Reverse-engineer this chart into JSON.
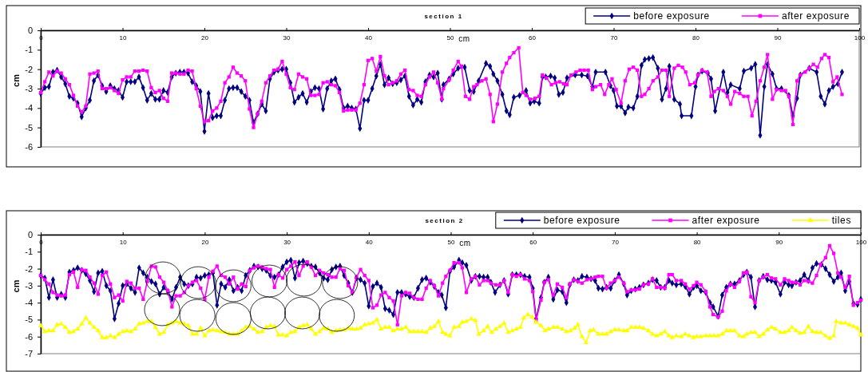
{
  "chart_data": [
    {
      "type": "line",
      "title": "section 1",
      "xlabel": "cm",
      "ylabel": "cm",
      "xlim": [
        0,
        100
      ],
      "xticks": [
        0,
        10,
        20,
        30,
        40,
        50,
        60,
        70,
        80,
        90,
        100
      ],
      "ylim": [
        -6,
        0
      ],
      "yticks": [
        -6,
        -5,
        -4,
        -3,
        -2,
        -1,
        0
      ],
      "grid": false,
      "legend": "top right",
      "series": [
        {
          "name": "before exposure",
          "color": "#000080",
          "marker": "diamond",
          "x": [
            0,
            0.5,
            1,
            1.5,
            2,
            2.5,
            3,
            3.5,
            4,
            4.5,
            5,
            5.5,
            6,
            6.5,
            7,
            7.5,
            8,
            8.5,
            9,
            9.5,
            10,
            10.5,
            11,
            11.5,
            12,
            12.5,
            13,
            13.5,
            14,
            14.5,
            15,
            15.5,
            16,
            16.5,
            17,
            17.5,
            18,
            18.5,
            19,
            19.5,
            20,
            20.5,
            21,
            21.5,
            22,
            22.5,
            23,
            23.5,
            24,
            24.5,
            25,
            25.5,
            26,
            26.5,
            27,
            27.5,
            28,
            28.5,
            29,
            29.5,
            30,
            30.5,
            31,
            31.5,
            32,
            32.5,
            33,
            33.5,
            34,
            34.5,
            35,
            35.5,
            36,
            36.5,
            37,
            37.5,
            38,
            38.5,
            39,
            39.5,
            40,
            40.5,
            41,
            41.5,
            42,
            42.5,
            43,
            43.5,
            44,
            44.5,
            45,
            45.5,
            46,
            46.5,
            47,
            47.5,
            48,
            48.5,
            49,
            49.2,
            49.9,
            50.4,
            51.0,
            51.8,
            52.4,
            52.9,
            53.5,
            54.4,
            54.9,
            55.3,
            55.8,
            56.4,
            56.9,
            57.3,
            57.8,
            58.5,
            59.3,
            59.8,
            60.3,
            60.9,
            61.3,
            61.7,
            62.3,
            62.8,
            63.3,
            63.8,
            64.3,
            65.3,
            66.1,
            66.8,
            67.4,
            67.8,
            69.0,
            69.6,
            70.0,
            70.4,
            70.9,
            71.4,
            71.8,
            72.4,
            72.9,
            73.4,
            73.8,
            74.3,
            74.8,
            75.4,
            75.9,
            76.4,
            76.8,
            77.4,
            78.1,
            78.3,
            79.5,
            80.0,
            80.3,
            80.8,
            81.5,
            81.9,
            82.4,
            83.4,
            83.9,
            84.3,
            85.4,
            85.9,
            86.8,
            87.3,
            87.9,
            88.4,
            88.8,
            89.4,
            89.9,
            90.5,
            91.4,
            91.9,
            92.4,
            92.8,
            93.9,
            94.8,
            95.3,
            95.8,
            96.3,
            96.8,
            97.4,
            97.9
          ],
          "values": [
            -3.25,
            -2.95,
            -2.9,
            -2.15,
            -2.05,
            -2.4,
            -2.75,
            -3.4,
            -3.5,
            -3.75,
            -4.45,
            -4.0,
            -3.6,
            -2.6,
            -2.3,
            -2.85,
            -3.15,
            -2.85,
            -3.0,
            -3.1,
            -3.45,
            -2.65,
            -2.65,
            -2.65,
            -2.4,
            -2.95,
            -3.6,
            -3.25,
            -3.55,
            -3.55,
            -3.1,
            -3.2,
            -2.4,
            -2.2,
            -2.15,
            -2.15,
            -2.2,
            -2.65,
            -2.85,
            -3.15,
            -5.2,
            -3.25,
            -4.5,
            -4.4,
            -4.4,
            -3.6,
            -3.0,
            -2.95,
            -2.95,
            -3.15,
            -3.4,
            -3.6,
            -4.75,
            -4.3,
            -3.8,
            -4.15,
            -2.5,
            -2.15,
            -2.05,
            -2.0,
            -2.0,
            -2.7,
            -3.7,
            -3.45,
            -3.25,
            -3.7,
            -3.15,
            -2.95,
            -3.0,
            -4.05,
            -3.0,
            -2.6,
            -2.5,
            -3.05,
            -4.0,
            -3.9,
            -4.0,
            -4.05,
            -5.05,
            -3.6,
            -3.6,
            -3.0,
            -2.35,
            -1.75,
            -2.8,
            -2.45,
            -2.75,
            -2.7,
            -2.55,
            -2.35,
            -3.4,
            -3.85,
            -3.55,
            -3.7,
            -2.65,
            -2.3,
            -2.4,
            -2.2,
            -3.55,
            -2.8,
            -2.5,
            -2.25,
            -1.95,
            -1.9,
            -3.1,
            -3.15,
            -2.6,
            -1.7,
            -1.85,
            -2.25,
            -2.6,
            -3.3,
            -4.15,
            -4.35,
            -3.45,
            -3.35,
            -3.1,
            -3.75,
            -3.65,
            -3.75,
            -2.4,
            -2.4,
            -2.35,
            -2.45,
            -3.3,
            -3.2,
            -2.45,
            -2.3,
            -2.3,
            -2.35,
            -2.9,
            -2.15,
            -2.15,
            -2.85,
            -3.1,
            -3.9,
            -3.9,
            -4.25,
            -3.95,
            -4.0,
            -3.4,
            -1.8,
            -1.5,
            -1.45,
            -1.4,
            -1.95,
            -3.55,
            -3.0,
            -1.85,
            -3.55,
            -3.8,
            -4.4,
            -4.4,
            -2.9,
            -2.3,
            -2.1,
            -2.2,
            -2.5,
            -4.15,
            -2.15,
            -3.2,
            -2.8,
            -3.0,
            -2.1,
            -1.95,
            -1.75,
            -5.4,
            -2.9,
            -1.75,
            -2.25,
            -3.0,
            -3.0,
            -3.35,
            -4.4,
            -3.5,
            -2.3,
            -1.95,
            -2.15,
            -3.4,
            -3.8,
            -3.1,
            -2.9,
            -2.75,
            -2.15
          ]
        },
        {
          "name": "after exposure",
          "color": "#ff00ff",
          "marker": "square",
          "x": [
            0,
            0.5,
            1,
            1.5,
            2,
            2.5,
            3,
            3.5,
            4,
            4.5,
            5,
            5.5,
            6,
            6.5,
            7,
            7.5,
            8,
            8.5,
            9,
            9.5,
            10,
            10.5,
            11,
            11.5,
            12,
            12.5,
            13,
            13.5,
            14,
            14.5,
            15,
            15.5,
            16,
            16.5,
            17,
            17.5,
            18,
            18.5,
            19,
            19.5,
            20,
            20.5,
            21,
            21.5,
            22,
            22.5,
            23,
            23.5,
            24,
            24.5,
            25,
            25.5,
            26,
            26.5,
            27,
            27.5,
            28,
            28.5,
            29,
            29.5,
            30,
            30.5,
            31,
            31.5,
            32,
            32.5,
            33,
            33.5,
            34,
            34.5,
            35,
            35.5,
            36,
            36.5,
            37,
            37.5,
            38,
            38.5,
            39,
            39.5,
            40,
            40.5,
            41,
            41.5,
            42,
            42.5,
            43,
            43.5,
            44,
            44.5,
            45,
            45.5,
            46,
            46.5,
            47,
            47.5,
            48,
            48.5,
            49,
            49.2,
            49.9,
            50.4,
            51.0,
            51.4,
            51.9,
            52.4,
            52.9,
            53.3,
            53.9,
            54.4,
            54.9,
            55.3,
            55.8,
            56.4,
            56.9,
            57.3,
            57.8,
            58.4,
            58.9,
            59.3,
            59.8,
            60.4,
            60.9,
            61.3,
            61.8,
            62.4,
            62.9,
            63.4,
            63.9,
            64.3,
            64.8,
            65.4,
            65.9,
            66.4,
            66.9,
            67.4,
            67.8,
            68.4,
            68.9,
            69.4,
            69.8,
            70.3,
            70.9,
            71.4,
            71.9,
            72.4,
            72.9,
            73.4,
            73.8,
            74.3,
            74.8,
            75.4,
            75.9,
            76.4,
            76.8,
            77.4,
            77.9,
            78.4,
            78.8,
            79.3,
            79.9,
            80.3,
            80.8,
            81.4,
            81.9,
            82.3,
            82.8,
            83.4,
            83.9,
            84.3,
            84.8,
            85.4,
            85.9,
            86.4,
            86.9,
            87.4,
            87.9,
            88.4,
            88.8,
            89.4,
            89.9,
            90.5,
            91.0,
            91.4,
            91.9,
            92.4,
            92.8,
            93.4,
            93.9,
            94.4,
            94.9,
            95.4,
            95.8,
            96.3,
            96.8,
            97.3,
            97.9
          ],
          "values": [
            -3.2,
            -2.65,
            -2.15,
            -2.35,
            -2.1,
            -2.2,
            -2.5,
            -2.8,
            -3.35,
            -3.9,
            -4.2,
            -3.9,
            -2.25,
            -2.2,
            -2.1,
            -3.0,
            -3.0,
            -2.95,
            -3.1,
            -3.25,
            -2.55,
            -2.4,
            -2.4,
            -2.1,
            -2.1,
            -2.05,
            -2.1,
            -2.95,
            -3.2,
            -3.1,
            -3.5,
            -3.65,
            -2.2,
            -2.2,
            -2.25,
            -2.25,
            -2.05,
            -2.1,
            -3.0,
            -3.9,
            -4.7,
            -4.65,
            -4.15,
            -4.0,
            -3.65,
            -2.7,
            -2.4,
            -1.9,
            -2.2,
            -2.35,
            -2.6,
            -4.05,
            -5.0,
            -4.3,
            -3.65,
            -2.7,
            -2.35,
            -2.05,
            -2.0,
            -1.6,
            -2.25,
            -2.95,
            -3.05,
            -2.25,
            -2.4,
            -2.5,
            -3.35,
            -3.35,
            -3.3,
            -2.7,
            -2.65,
            -2.8,
            -2.85,
            -3.2,
            -4.15,
            -4.1,
            -4.1,
            -4.1,
            -3.75,
            -2.8,
            -1.55,
            -1.45,
            -2.1,
            -1.35,
            -2.35,
            -2.8,
            -2.7,
            -2.6,
            -2.25,
            -2.05,
            -3.05,
            -3.1,
            -3.35,
            -3.4,
            -2.8,
            -2.4,
            -2.15,
            -2.7,
            -3.55,
            -3.0,
            -2.55,
            -2.05,
            -1.6,
            -1.85,
            -3.4,
            -3.55,
            -2.9,
            -2.8,
            -2.6,
            -2.5,
            -3.3,
            -4.7,
            -3.8,
            -2.15,
            -1.7,
            -1.4,
            -1.15,
            -0.9,
            -3.2,
            -3.35,
            -3.55,
            -3.5,
            -3.4,
            -2.3,
            -2.45,
            -2.8,
            -2.7,
            -2.65,
            -2.75,
            -2.8,
            -2.3,
            -2.15,
            -2.05,
            -2.05,
            -2.05,
            -3.05,
            -2.9,
            -2.8,
            -3.3,
            -2.8,
            -2.5,
            -3.05,
            -3.75,
            -2.6,
            -2.0,
            -1.9,
            -2.05,
            -3.4,
            -3.3,
            -3.0,
            -2.6,
            -2.4,
            -2.05,
            -2.05,
            -3.4,
            -1.95,
            -1.8,
            -1.9,
            -2.15,
            -2.8,
            -2.7,
            -2.3,
            -2.05,
            -2.15,
            -3.4,
            -3.15,
            -3.0,
            -3.1,
            -3.4,
            -3.8,
            -3.15,
            -3.25,
            -3.4,
            -3.4,
            -4.4,
            -3.65,
            -2.6,
            -1.9,
            -1.25,
            -3.55,
            -3.05,
            -3.1,
            -3.1,
            -3.4,
            -4.85,
            -2.6,
            -2.3,
            -2.15,
            -1.95,
            -1.75,
            -1.9,
            -1.45,
            -1.25,
            -1.4,
            -2.65,
            -2.4,
            -3.3
          ]
        }
      ]
    },
    {
      "type": "line",
      "title": "section 2",
      "xlabel": "cm",
      "ylabel": "cm",
      "xlim": [
        0,
        100
      ],
      "xticks": [
        0,
        10,
        20,
        30,
        40,
        50,
        60,
        70,
        80,
        90,
        100
      ],
      "ylim": [
        -7,
        0
      ],
      "yticks": [
        -7,
        -6,
        -5,
        -4,
        -3,
        -2,
        -1,
        0
      ],
      "grid": false,
      "legend": "top right",
      "series": [
        {
          "name": "before exposure",
          "color": "#000080",
          "marker": "diamond",
          "x": [
            0,
            0.5,
            1,
            1.5,
            2,
            2.5,
            3,
            3.5,
            4,
            4.5,
            5,
            5.5,
            6,
            6.5,
            7,
            7.5,
            8,
            8.5,
            9,
            9.5,
            10,
            10.5,
            11,
            11.5,
            12,
            12.5,
            13,
            13.5,
            14,
            14.5,
            15,
            15.5,
            16,
            16.5,
            17,
            17.5,
            18,
            18.5,
            19,
            19.5,
            20,
            20.5,
            21,
            21.5,
            22,
            22.5,
            23,
            23.5,
            24,
            24.5,
            25,
            25.5,
            26,
            26.5,
            27,
            27.5,
            28,
            28.5,
            29,
            29.5,
            30,
            30.5,
            31,
            31.5,
            32,
            32.5,
            33,
            33.5,
            34,
            34.5,
            35,
            35.5,
            36,
            36.5,
            37,
            37.5,
            38,
            38.5,
            39,
            39.5,
            40,
            40.5,
            41,
            41.5,
            42,
            42.5,
            43,
            43.5,
            44,
            44.5,
            45,
            45.5,
            46,
            46.5,
            47,
            47.5,
            48,
            48.5,
            48.9,
            49.4,
            49.9,
            50.4,
            51.0,
            51.4,
            51.9,
            52.5,
            53.0,
            53.5,
            54.0,
            54.5,
            54.9,
            55.4,
            56.0,
            56.5,
            57.0,
            57.5,
            58.0,
            58.5,
            59.0,
            59.6,
            60.0,
            60.4,
            61.0,
            61.4,
            61.9,
            62.5,
            63.0,
            63.6,
            64.1,
            64.5,
            65.0,
            65.5,
            66.0,
            66.6,
            67.1,
            67.6,
            68.0,
            68.5,
            69.0,
            69.5,
            70.0,
            70.5,
            71.1,
            71.5,
            72.0,
            72.5,
            73.0,
            73.5,
            74.1,
            74.6,
            75.1,
            75.6,
            76.1,
            76.6,
            77.0,
            77.5,
            78.1,
            78.6,
            79.1,
            79.6,
            80.0,
            80.5,
            81.1,
            81.6,
            82.0,
            82.6,
            83.1,
            83.6,
            84.1,
            84.6,
            85.2,
            85.7,
            86.1,
            86.6,
            87.1,
            87.6,
            88.1,
            88.6,
            89.1,
            89.6,
            90.2,
            90.7,
            91.2,
            91.6,
            92.1,
            92.6,
            93.1,
            93.6,
            94.1,
            94.6,
            95.2,
            95.7,
            96.2,
            96.7,
            97.2,
            97.6,
            98.1,
            98.6,
            99.1,
            99.6,
            100
          ],
          "values": [
            -2.4,
            -2.55,
            -3.7,
            -2.65,
            -3.7,
            -3.5,
            -3.7,
            -2.2,
            -2.1,
            -1.95,
            -2.1,
            -2.3,
            -2.7,
            -3.35,
            -2.25,
            -2.15,
            -3.0,
            -3.3,
            -4.95,
            -4.05,
            -3.0,
            -2.9,
            -3.15,
            -3.4,
            -1.95,
            -2.25,
            -2.5,
            -2.75,
            -2.9,
            -3.5,
            -3.1,
            -3.35,
            -3.8,
            -3.1,
            -2.5,
            -2.9,
            -3.0,
            -2.9,
            -2.5,
            -2.55,
            -2.4,
            -2.35,
            -2.25,
            -4.15,
            -2.9,
            -3.1,
            -2.65,
            -3.3,
            -3.1,
            -3.3,
            -2.4,
            -2.1,
            -1.85,
            -1.9,
            -2.0,
            -2.1,
            -2.4,
            -2.5,
            -2.35,
            -1.9,
            -1.6,
            -1.5,
            -2.55,
            -1.65,
            -1.55,
            -1.7,
            -1.85,
            -1.9,
            -2.25,
            -2.55,
            -2.65,
            -2.05,
            -1.9,
            -1.85,
            -2.4,
            -2.85,
            -3.4,
            -2.55,
            -2.65,
            -2.85,
            -4.2,
            -3.05,
            -2.85,
            -3.1,
            -4.35,
            -4.45,
            -4.7,
            -3.4,
            -3.4,
            -3.5,
            -3.65,
            -3.7,
            -3.15,
            -2.65,
            -2.55,
            -2.8,
            -3.05,
            -3.4,
            -3.55,
            -4.3,
            -2.15,
            -1.9,
            -1.5,
            -1.65,
            -1.8,
            -2.7,
            -2.45,
            -2.45,
            -2.5,
            -2.5,
            -2.8,
            -3.4,
            -2.95,
            -2.7,
            -3.5,
            -2.35,
            -2.35,
            -2.35,
            -2.45,
            -2.5,
            -3.15,
            -4.95,
            -3.7,
            -2.8,
            -2.5,
            -3.8,
            -3.25,
            -3.35,
            -4.0,
            -2.95,
            -2.65,
            -2.7,
            -2.45,
            -2.5,
            -2.6,
            -2.7,
            -3.15,
            -3.2,
            -3.1,
            -3.15,
            -2.7,
            -2.35,
            -2.9,
            -3.55,
            -3.3,
            -3.2,
            -3.1,
            -2.95,
            -2.85,
            -2.65,
            -2.7,
            -3.1,
            -3.1,
            -2.7,
            -2.85,
            -2.95,
            -2.9,
            -3.05,
            -3.5,
            -3.1,
            -3.0,
            -3.3,
            -3.4,
            -4.0,
            -4.25,
            -4.8,
            -3.55,
            -3.1,
            -2.9,
            -2.9,
            -2.7,
            -2.35,
            -2.2,
            -2.5,
            -4.25,
            -2.7,
            -2.45,
            -2.65,
            -2.7,
            -2.8,
            -3.5,
            -2.8,
            -2.95,
            -3.0,
            -2.8,
            -2.7,
            -2.35,
            -2.7,
            -1.95,
            -1.7,
            -1.75,
            -2.0,
            -2.35,
            -2.75,
            -2.5,
            -2.25,
            -3.3,
            -2.75,
            -4.05,
            -4.1,
            -3.8
          ]
        },
        {
          "name": "after exposure",
          "color": "#ff00ff",
          "marker": "square",
          "x": [
            0,
            0.5,
            1,
            1.5,
            2,
            2.5,
            3,
            3.5,
            4,
            4.5,
            5,
            5.5,
            6,
            6.5,
            7,
            7.5,
            8,
            8.5,
            9,
            9.5,
            10,
            10.5,
            11,
            11.5,
            12,
            12.5,
            13,
            13.5,
            14,
            14.5,
            15,
            15.5,
            16,
            16.5,
            17,
            17.5,
            18,
            18.5,
            19,
            19.5,
            20,
            20.5,
            21,
            21.5,
            22,
            22.5,
            23,
            23.5,
            24,
            24.5,
            25,
            25.5,
            26,
            26.5,
            27,
            27.5,
            28,
            28.5,
            29,
            29.5,
            30,
            30.5,
            31,
            31.5,
            32,
            32.5,
            33,
            33.5,
            34,
            34.5,
            35,
            35.5,
            36,
            36.5,
            37,
            37.5,
            38,
            38.5,
            39,
            39.5,
            40,
            40.5,
            41,
            41.5,
            42,
            42.5,
            43,
            43.5,
            44,
            44.5,
            45,
            45.5,
            46,
            46.5,
            47,
            47.5,
            48,
            48.5,
            49,
            49.4,
            49.9,
            50.4,
            51.0,
            51.4,
            51.9,
            52.5,
            53.0,
            53.5,
            54.0,
            54.5,
            54.9,
            55.5,
            56.0,
            56.5,
            57.0,
            57.5,
            58.0,
            58.5,
            59.0,
            59.6,
            60.0,
            60.4,
            61.0,
            61.4,
            61.9,
            62.5,
            63.0,
            63.6,
            64.1,
            64.5,
            65.0,
            65.5,
            66.0,
            66.6,
            67.1,
            67.6,
            68.0,
            68.5,
            69.0,
            69.5,
            70.0,
            70.5,
            71.1,
            71.5,
            72.0,
            72.5,
            73.0,
            73.5,
            74.1,
            74.6,
            75.1,
            75.6,
            76.1,
            76.6,
            77.0,
            77.5,
            78.1,
            78.6,
            79.1,
            79.6,
            80.0,
            80.5,
            81.1,
            81.6,
            82.0,
            82.6,
            83.1,
            83.6,
            84.1,
            84.6,
            85.2,
            85.7,
            86.1,
            86.6,
            87.1,
            87.6,
            88.1,
            88.6,
            89.1,
            89.6,
            90.2,
            90.7,
            91.2,
            91.6,
            92.1,
            92.6,
            93.1,
            93.6,
            94.1,
            94.6,
            95.1,
            95.7,
            96.2,
            96.7,
            97.2,
            97.6,
            98.1,
            98.6,
            99.1,
            99.6,
            100
          ],
          "values": [
            -2.4,
            -2.65,
            -2.9,
            -3.4,
            -3.55,
            -3.6,
            -3.55,
            -2.35,
            -2.2,
            -3.1,
            -2.05,
            -2.1,
            -2.5,
            -2.85,
            -3.5,
            -2.4,
            -2.2,
            -2.9,
            -3.7,
            -3.55,
            -3.9,
            -2.75,
            -2.85,
            -3.15,
            -3.15,
            -3.8,
            -2.75,
            -1.85,
            -1.9,
            -2.5,
            -2.8,
            -3.3,
            -4.25,
            -3.6,
            -3.6,
            -3.4,
            -3.0,
            -2.8,
            -2.7,
            -3.15,
            -3.8,
            -2.5,
            -2.15,
            -1.85,
            -2.4,
            -2.5,
            -2.9,
            -2.5,
            -3.2,
            -2.9,
            -3.05,
            -2.1,
            -1.95,
            -1.85,
            -1.9,
            -2.0,
            -2.05,
            -3.1,
            -2.35,
            -2.55,
            -2.05,
            -1.85,
            -1.6,
            -2.4,
            -1.85,
            -1.6,
            -1.9,
            -2.4,
            -2.1,
            -2.25,
            -2.35,
            -2.5,
            -2.5,
            -2.0,
            -2.1,
            -3.0,
            -3.4,
            -2.5,
            -2.05,
            -2.4,
            -2.7,
            -4.3,
            -4.15,
            -3.55,
            -3.4,
            -3.7,
            -3.9,
            -5.3,
            -3.6,
            -3.4,
            -3.45,
            -3.7,
            -3.8,
            -3.8,
            -3.15,
            -2.7,
            -3.0,
            -3.6,
            -2.85,
            -2.45,
            -2.1,
            -1.65,
            -1.65,
            -1.95,
            -3.4,
            -2.6,
            -2.45,
            -2.95,
            -2.7,
            -2.7,
            -2.85,
            -2.95,
            -2.95,
            -2.7,
            -3.4,
            -2.35,
            -2.45,
            -2.35,
            -2.6,
            -2.7,
            -3.35,
            -5.05,
            -3.85,
            -2.8,
            -2.65,
            -3.55,
            -2.9,
            -3.1,
            -3.7,
            -2.9,
            -2.65,
            -2.75,
            -2.85,
            -2.65,
            -2.6,
            -2.5,
            -2.45,
            -2.45,
            -3.15,
            -2.85,
            -2.7,
            -2.5,
            -2.85,
            -3.35,
            -3.25,
            -3.25,
            -3.2,
            -2.95,
            -2.9,
            -2.6,
            -3.1,
            -3.1,
            -3.15,
            -2.35,
            -2.35,
            -2.7,
            -2.7,
            -2.9,
            -3.2,
            -3.0,
            -2.8,
            -2.95,
            -3.35,
            -4.25,
            -4.7,
            -4.85,
            -4.5,
            -3.3,
            -2.9,
            -3.1,
            -2.75,
            -2.25,
            -2.2,
            -3.65,
            -4.0,
            -2.7,
            -2.5,
            -2.35,
            -2.55,
            -2.6,
            -2.95,
            -2.6,
            -2.7,
            -2.8,
            -2.8,
            -2.95,
            -2.7,
            -2.75,
            -2.85,
            -2.4,
            -1.75,
            -1.35,
            -0.65,
            -1.1,
            -2.25,
            -2.5,
            -3.1,
            -2.45,
            -4.15,
            -4.0,
            -3.85
          ]
        },
        {
          "name": "tiles",
          "color": "#ffff00",
          "marker": "triangle",
          "x": [
            0,
            0.5,
            1,
            1.5,
            2,
            2.5,
            3,
            3.5,
            4,
            4.5,
            5,
            5.5,
            6,
            6.5,
            7,
            7.5,
            8,
            8.5,
            9,
            9.5,
            10,
            10.5,
            11,
            11.5,
            12,
            12.5,
            13,
            13.5,
            14,
            14.5,
            15,
            15.5,
            16,
            16.5,
            17,
            17.5,
            18,
            18.5,
            19,
            19.5,
            20,
            20.5,
            21,
            21.5,
            22,
            22.5,
            23,
            23.5,
            24,
            24.5,
            25,
            25.5,
            26,
            26.5,
            27,
            27.5,
            28,
            28.5,
            29,
            29.5,
            30,
            30.5,
            31,
            31.5,
            32,
            32.5,
            33,
            33.5,
            34,
            34.5,
            35,
            35.5,
            36,
            36.5,
            37,
            37.5,
            38,
            38.5,
            39,
            39.5,
            40,
            40.5,
            41,
            41.5,
            42,
            42.5,
            43,
            43.5,
            44,
            44.5,
            45,
            45.5,
            46,
            46.5,
            47,
            47.5,
            48,
            48.5,
            49,
            49.4,
            49.9,
            50.4,
            51.0,
            51.4,
            51.9,
            52.5,
            53.0,
            53.4,
            54.0,
            54.5,
            55.0,
            55.5,
            56.0,
            56.5,
            57.0,
            57.5,
            58.0,
            58.5,
            58.9,
            59.4,
            59.9,
            60.4,
            61.0,
            61.5,
            61.9,
            62.5,
            63.0,
            63.6,
            64.1,
            64.6,
            65.1,
            65.5,
            66.0,
            66.5,
            67.0,
            67.4,
            68.0,
            68.5,
            69.0,
            69.5,
            70.0,
            70.5,
            71.1,
            71.5,
            72.0,
            72.5,
            73.0,
            73.5,
            74.1,
            74.6,
            75.1,
            75.6,
            76.1,
            76.6,
            77.0,
            77.5,
            78.1,
            78.6,
            79.1,
            79.6,
            80.0,
            80.5,
            81.1,
            81.6,
            82.1,
            82.6,
            83.1,
            83.6,
            84.1,
            84.6,
            85.2,
            85.7,
            86.1,
            86.6,
            87.1,
            87.6,
            88.1,
            88.6,
            89.1,
            89.6,
            90.2,
            90.7,
            91.2,
            91.6,
            92.1,
            92.6,
            93.1,
            93.6,
            94.1,
            94.6,
            95.1,
            95.7,
            96.2,
            96.7,
            97.0,
            97.6,
            98.1,
            98.6,
            99.1,
            99.6,
            100
          ],
          "values": [
            -5.35,
            -5.7,
            -5.65,
            -5.65,
            -5.3,
            -5.25,
            -5.45,
            -5.75,
            -5.7,
            -5.55,
            -5.25,
            -4.9,
            -5.2,
            -5.45,
            -5.65,
            -6.05,
            -6.05,
            -5.95,
            -6.05,
            -5.85,
            -5.7,
            -5.65,
            -5.7,
            -5.55,
            -5.25,
            -5.2,
            -5.1,
            -5.1,
            -5.45,
            -5.85,
            -5.75,
            -5.3,
            -5.2,
            -5.1,
            -5.2,
            -5.25,
            -5.35,
            -5.85,
            -5.85,
            -5.5,
            -5.95,
            -5.65,
            -5.6,
            -5.65,
            -5.7,
            -5.75,
            -5.85,
            -5.85,
            -5.85,
            -5.65,
            -5.45,
            -5.4,
            -5.55,
            -5.75,
            -5.7,
            -5.45,
            -5.35,
            -5.4,
            -5.9,
            -5.9,
            -5.95,
            -5.75,
            -5.7,
            -5.45,
            -5.35,
            -5.3,
            -5.55,
            -5.85,
            -5.7,
            -5.5,
            -5.55,
            -5.75,
            -5.65,
            -5.6,
            -5.6,
            -5.5,
            -5.55,
            -5.55,
            -5.5,
            -5.3,
            -5.25,
            -5.2,
            -5.0,
            -5.55,
            -5.45,
            -5.45,
            -5.65,
            -5.55,
            -5.55,
            -5.45,
            -5.7,
            -5.7,
            -5.7,
            -5.7,
            -5.75,
            -5.5,
            -5.4,
            -5.1,
            -5.75,
            -5.85,
            -5.95,
            -5.45,
            -5.4,
            -5.15,
            -5.1,
            -4.95,
            -5.05,
            -5.85,
            -5.65,
            -5.4,
            -5.75,
            -5.55,
            -5.4,
            -5.2,
            -5.75,
            -5.65,
            -5.55,
            -5.45,
            -4.9,
            -4.7,
            -4.85,
            -5.15,
            -5.35,
            -5.65,
            -5.55,
            -5.45,
            -5.45,
            -5.55,
            -5.7,
            -5.65,
            -5.5,
            -5.3,
            -6.0,
            -6.35,
            -5.65,
            -5.6,
            -5.85,
            -5.85,
            -5.85,
            -5.7,
            -5.6,
            -5.6,
            -5.65,
            -5.65,
            -5.45,
            -5.45,
            -5.45,
            -5.5,
            -5.65,
            -5.85,
            -5.95,
            -5.85,
            -5.7,
            -5.95,
            -6.05,
            -5.95,
            -6.0,
            -5.85,
            -5.95,
            -6.05,
            -6.0,
            -6.0,
            -5.95,
            -5.95,
            -5.95,
            -5.95,
            -5.85,
            -5.65,
            -5.65,
            -5.65,
            -5.95,
            -6.0,
            -5.85,
            -5.75,
            -5.75,
            -6.0,
            -5.85,
            -5.6,
            -5.45,
            -5.55,
            -5.75,
            -5.75,
            -5.65,
            -5.45,
            -5.65,
            -5.8,
            -5.75,
            -5.4,
            -5.7,
            -5.75,
            -5.75,
            -5.95,
            -6.1,
            -5.95,
            -5.1,
            -5.2,
            -5.2,
            -5.3,
            -5.4,
            -5.5,
            -5.9
          ]
        }
      ]
    }
  ]
}
